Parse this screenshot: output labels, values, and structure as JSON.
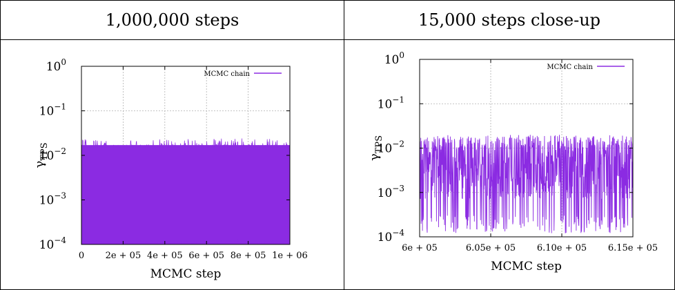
{
  "panels": {
    "left_header": "1,000,000 steps",
    "right_header": "15,000 steps close-up"
  },
  "colors": {
    "series": "#8b2be2",
    "grid": "#b0b0b0"
  },
  "chart_data": [
    {
      "type": "line",
      "title": "",
      "xlabel": "MCMC step",
      "ylabel": "γTPS",
      "ylabel_base": "γ",
      "ylabel_sub": "TPS",
      "log_y": true,
      "grid": true,
      "legend_position": "top-right",
      "xlim": [
        0,
        1000000
      ],
      "ylim": [
        0.0001,
        1
      ],
      "x_ticks": [
        0,
        200000,
        400000,
        600000,
        800000,
        1000000
      ],
      "x_tick_labels": [
        "0",
        "2e + 05",
        "4e + 05",
        "6e + 05",
        "8e + 05",
        "1e + 06"
      ],
      "y_ticks": [
        0.0001,
        0.001,
        0.01,
        0.1,
        1
      ],
      "y_tick_labels": [
        {
          "base": "10",
          "exp": "−4"
        },
        {
          "base": "10",
          "exp": "−3"
        },
        {
          "base": "10",
          "exp": "−2"
        },
        {
          "base": "10",
          "exp": "−1"
        },
        {
          "base": "10",
          "exp": "0"
        }
      ],
      "series": [
        {
          "name": "MCMC chain",
          "typical_range": [
            0.0001,
            0.017
          ],
          "peak_max": 0.024,
          "band_lower": 0.0001
        }
      ]
    },
    {
      "type": "line",
      "title": "",
      "xlabel": "MCMC step",
      "ylabel": "γTPS",
      "ylabel_base": "γ",
      "ylabel_sub": "TPS",
      "log_y": true,
      "grid": true,
      "legend_position": "top-right",
      "xlim": [
        600000,
        615000
      ],
      "ylim": [
        0.0001,
        1
      ],
      "x_ticks": [
        600000,
        605000,
        610000,
        615000
      ],
      "x_tick_labels": [
        "6e + 05",
        "6.05e + 05",
        "6.10e + 05",
        "6.15e + 05"
      ],
      "y_ticks": [
        0.0001,
        0.001,
        0.01,
        0.1,
        1
      ],
      "y_tick_labels": [
        {
          "base": "10",
          "exp": "−4"
        },
        {
          "base": "10",
          "exp": "−3"
        },
        {
          "base": "10",
          "exp": "−2"
        },
        {
          "base": "10",
          "exp": "−1"
        },
        {
          "base": "10",
          "exp": "0"
        }
      ],
      "series": [
        {
          "name": "MCMC chain",
          "typical_range": [
            0.00012,
            0.018
          ],
          "peak_max": 0.02,
          "band_lower": 0.00012
        }
      ]
    }
  ]
}
